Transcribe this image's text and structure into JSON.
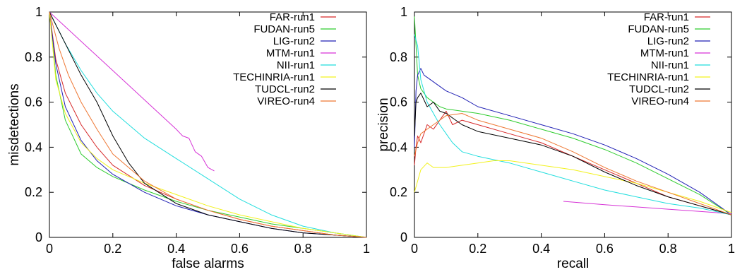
{
  "chart_data": [
    {
      "type": "line",
      "xlabel": "false alarms",
      "ylabel": "misdetections",
      "xlim": [
        0,
        1
      ],
      "ylim": [
        0,
        1
      ],
      "xticks": [
        "0",
        "0.2",
        "0.4",
        "0.6",
        "0.8",
        "1"
      ],
      "yticks": [
        "0",
        "0.2",
        "0.4",
        "0.6",
        "0.8",
        "1"
      ],
      "grid": false,
      "legend_position": "top-right",
      "series": [
        {
          "name": "FAR-run1",
          "color": "#d62728",
          "points": [
            [
              0,
              1
            ],
            [
              0.02,
              0.79
            ],
            [
              0.05,
              0.64
            ],
            [
              0.1,
              0.5
            ],
            [
              0.15,
              0.4
            ],
            [
              0.2,
              0.32
            ],
            [
              0.3,
              0.23
            ],
            [
              0.4,
              0.17
            ],
            [
              0.5,
              0.12
            ],
            [
              0.6,
              0.08
            ],
            [
              0.7,
              0.05
            ],
            [
              0.8,
              0.03
            ],
            [
              0.9,
              0.01
            ],
            [
              1,
              0
            ]
          ]
        },
        {
          "name": "FUDAN-run5",
          "color": "#2ecc2e",
          "points": [
            [
              0,
              1
            ],
            [
              0.02,
              0.72
            ],
            [
              0.05,
              0.52
            ],
            [
              0.1,
              0.37
            ],
            [
              0.15,
              0.31
            ],
            [
              0.2,
              0.27
            ],
            [
              0.3,
              0.21
            ],
            [
              0.4,
              0.16
            ],
            [
              0.5,
              0.12
            ],
            [
              0.6,
              0.09
            ],
            [
              0.7,
              0.06
            ],
            [
              0.8,
              0.04
            ],
            [
              0.9,
              0.02
            ],
            [
              1,
              0
            ]
          ]
        },
        {
          "name": "LIG-run2",
          "color": "#1f1fb4",
          "points": [
            [
              0,
              1
            ],
            [
              0.02,
              0.77
            ],
            [
              0.05,
              0.58
            ],
            [
              0.1,
              0.43
            ],
            [
              0.15,
              0.34
            ],
            [
              0.2,
              0.28
            ],
            [
              0.3,
              0.2
            ],
            [
              0.4,
              0.14
            ],
            [
              0.5,
              0.1
            ],
            [
              0.6,
              0.07
            ],
            [
              0.7,
              0.04
            ],
            [
              0.8,
              0.02
            ],
            [
              0.9,
              0.01
            ],
            [
              1,
              0
            ]
          ]
        },
        {
          "name": "MTM-run1",
          "color": "#d633d6",
          "points": [
            [
              0,
              1
            ],
            [
              0.1,
              0.87
            ],
            [
              0.2,
              0.74
            ],
            [
              0.3,
              0.61
            ],
            [
              0.35,
              0.545
            ],
            [
              0.4,
              0.48
            ],
            [
              0.42,
              0.45
            ],
            [
              0.44,
              0.44
            ],
            [
              0.46,
              0.38
            ],
            [
              0.48,
              0.36
            ],
            [
              0.5,
              0.31
            ],
            [
              0.52,
              0.295
            ]
          ]
        },
        {
          "name": "NII-run1",
          "color": "#22dede",
          "points": [
            [
              0,
              1
            ],
            [
              0.05,
              0.86
            ],
            [
              0.1,
              0.74
            ],
            [
              0.15,
              0.64
            ],
            [
              0.2,
              0.56
            ],
            [
              0.25,
              0.5
            ],
            [
              0.3,
              0.44
            ],
            [
              0.4,
              0.35
            ],
            [
              0.5,
              0.26
            ],
            [
              0.6,
              0.17
            ],
            [
              0.7,
              0.1
            ],
            [
              0.8,
              0.05
            ],
            [
              0.9,
              0.02
            ],
            [
              1,
              0
            ]
          ]
        },
        {
          "name": "TECHINRIA-run1",
          "color": "#f2f21e",
          "points": [
            [
              0,
              1
            ],
            [
              0.02,
              0.7
            ],
            [
              0.05,
              0.55
            ],
            [
              0.1,
              0.42
            ],
            [
              0.15,
              0.35
            ],
            [
              0.2,
              0.3
            ],
            [
              0.3,
              0.24
            ],
            [
              0.4,
              0.19
            ],
            [
              0.5,
              0.14
            ],
            [
              0.6,
              0.1
            ],
            [
              0.7,
              0.07
            ],
            [
              0.8,
              0.04
            ],
            [
              0.9,
              0.02
            ],
            [
              1,
              0
            ]
          ]
        },
        {
          "name": "TUDCL-run2",
          "color": "#000000",
          "points": [
            [
              0,
              1
            ],
            [
              0.05,
              0.86
            ],
            [
              0.1,
              0.72
            ],
            [
              0.15,
              0.6
            ],
            [
              0.2,
              0.45
            ],
            [
              0.25,
              0.33
            ],
            [
              0.3,
              0.24
            ],
            [
              0.4,
              0.15
            ],
            [
              0.5,
              0.1
            ],
            [
              0.6,
              0.07
            ],
            [
              0.7,
              0.04
            ],
            [
              0.8,
              0.02
            ],
            [
              0.9,
              0.01
            ],
            [
              1,
              0
            ]
          ]
        },
        {
          "name": "VIREO-run4",
          "color": "#ee7733",
          "points": [
            [
              0,
              1
            ],
            [
              0.03,
              0.84
            ],
            [
              0.06,
              0.72
            ],
            [
              0.1,
              0.6
            ],
            [
              0.15,
              0.48
            ],
            [
              0.2,
              0.37
            ],
            [
              0.3,
              0.25
            ],
            [
              0.4,
              0.17
            ],
            [
              0.5,
              0.12
            ],
            [
              0.6,
              0.08
            ],
            [
              0.7,
              0.05
            ],
            [
              0.8,
              0.03
            ],
            [
              0.9,
              0.01
            ],
            [
              1,
              0
            ]
          ]
        }
      ]
    },
    {
      "type": "line",
      "xlabel": "recall",
      "ylabel": "precision",
      "xlim": [
        0,
        1
      ],
      "ylim": [
        0,
        1
      ],
      "xticks": [
        "0",
        "0.2",
        "0.4",
        "0.6",
        "0.8",
        "1"
      ],
      "yticks": [
        "0",
        "0.2",
        "0.4",
        "0.6",
        "0.8",
        "1"
      ],
      "grid": false,
      "legend_position": "top-right",
      "series": [
        {
          "name": "FAR-run1",
          "color": "#d62728",
          "points": [
            [
              0,
              0.32
            ],
            [
              0.005,
              0.4
            ],
            [
              0.01,
              0.45
            ],
            [
              0.02,
              0.42
            ],
            [
              0.04,
              0.5
            ],
            [
              0.06,
              0.48
            ],
            [
              0.08,
              0.52
            ],
            [
              0.1,
              0.56
            ],
            [
              0.12,
              0.5
            ],
            [
              0.15,
              0.52
            ],
            [
              0.2,
              0.5
            ],
            [
              0.3,
              0.46
            ],
            [
              0.4,
              0.42
            ],
            [
              0.5,
              0.36
            ],
            [
              0.6,
              0.3
            ],
            [
              0.7,
              0.24
            ],
            [
              0.8,
              0.18
            ],
            [
              0.9,
              0.14
            ],
            [
              1,
              0.1
            ]
          ]
        },
        {
          "name": "FUDAN-run5",
          "color": "#2ecc2e",
          "points": [
            [
              0,
              0.98
            ],
            [
              0.01,
              0.72
            ],
            [
              0.02,
              0.66
            ],
            [
              0.04,
              0.62
            ],
            [
              0.06,
              0.6
            ],
            [
              0.08,
              0.58
            ],
            [
              0.1,
              0.57
            ],
            [
              0.15,
              0.56
            ],
            [
              0.2,
              0.55
            ],
            [
              0.3,
              0.52
            ],
            [
              0.4,
              0.48
            ],
            [
              0.5,
              0.44
            ],
            [
              0.6,
              0.39
            ],
            [
              0.7,
              0.33
            ],
            [
              0.8,
              0.26
            ],
            [
              0.9,
              0.19
            ],
            [
              1,
              0.1
            ]
          ]
        },
        {
          "name": "LIG-run2",
          "color": "#1f1fb4",
          "points": [
            [
              0,
              0.4
            ],
            [
              0.005,
              0.65
            ],
            [
              0.01,
              0.72
            ],
            [
              0.02,
              0.75
            ],
            [
              0.03,
              0.72
            ],
            [
              0.05,
              0.7
            ],
            [
              0.08,
              0.67
            ],
            [
              0.1,
              0.65
            ],
            [
              0.15,
              0.62
            ],
            [
              0.2,
              0.58
            ],
            [
              0.3,
              0.54
            ],
            [
              0.4,
              0.5
            ],
            [
              0.5,
              0.46
            ],
            [
              0.6,
              0.41
            ],
            [
              0.7,
              0.35
            ],
            [
              0.8,
              0.28
            ],
            [
              0.9,
              0.2
            ],
            [
              1,
              0.1
            ]
          ]
        },
        {
          "name": "MTM-run1",
          "color": "#d633d6",
          "points": [
            [
              0.47,
              0.16
            ],
            [
              0.6,
              0.145
            ],
            [
              0.7,
              0.135
            ],
            [
              0.8,
              0.125
            ],
            [
              0.9,
              0.115
            ],
            [
              1,
              0.105
            ]
          ]
        },
        {
          "name": "NII-run1",
          "color": "#22dede",
          "points": [
            [
              0,
              0.9
            ],
            [
              0.01,
              0.85
            ],
            [
              0.02,
              0.7
            ],
            [
              0.04,
              0.6
            ],
            [
              0.06,
              0.55
            ],
            [
              0.08,
              0.5
            ],
            [
              0.1,
              0.46
            ],
            [
              0.12,
              0.42
            ],
            [
              0.15,
              0.38
            ],
            [
              0.2,
              0.36
            ],
            [
              0.3,
              0.33
            ],
            [
              0.4,
              0.29
            ],
            [
              0.5,
              0.25
            ],
            [
              0.6,
              0.21
            ],
            [
              0.7,
              0.18
            ],
            [
              0.8,
              0.15
            ],
            [
              0.9,
              0.13
            ],
            [
              1,
              0.1
            ]
          ]
        },
        {
          "name": "TECHINRIA-run1",
          "color": "#f2f21e",
          "points": [
            [
              0,
              0.2
            ],
            [
              0.01,
              0.25
            ],
            [
              0.02,
              0.3
            ],
            [
              0.04,
              0.33
            ],
            [
              0.06,
              0.31
            ],
            [
              0.1,
              0.31
            ],
            [
              0.15,
              0.32
            ],
            [
              0.2,
              0.33
            ],
            [
              0.25,
              0.34
            ],
            [
              0.3,
              0.34
            ],
            [
              0.4,
              0.32
            ],
            [
              0.5,
              0.3
            ],
            [
              0.6,
              0.27
            ],
            [
              0.7,
              0.24
            ],
            [
              0.8,
              0.2
            ],
            [
              0.9,
              0.16
            ],
            [
              1,
              0.11
            ]
          ]
        },
        {
          "name": "TUDCL-run2",
          "color": "#000000",
          "points": [
            [
              0,
              0.45
            ],
            [
              0.005,
              0.6
            ],
            [
              0.01,
              0.62
            ],
            [
              0.02,
              0.64
            ],
            [
              0.04,
              0.58
            ],
            [
              0.06,
              0.6
            ],
            [
              0.08,
              0.56
            ],
            [
              0.1,
              0.55
            ],
            [
              0.15,
              0.5
            ],
            [
              0.2,
              0.47
            ],
            [
              0.3,
              0.44
            ],
            [
              0.4,
              0.41
            ],
            [
              0.5,
              0.36
            ],
            [
              0.6,
              0.29
            ],
            [
              0.7,
              0.23
            ],
            [
              0.8,
              0.18
            ],
            [
              0.9,
              0.14
            ],
            [
              1,
              0.1
            ]
          ]
        },
        {
          "name": "VIREO-run4",
          "color": "#ee7733",
          "points": [
            [
              0,
              0.36
            ],
            [
              0.01,
              0.42
            ],
            [
              0.02,
              0.46
            ],
            [
              0.04,
              0.48
            ],
            [
              0.06,
              0.5
            ],
            [
              0.08,
              0.52
            ],
            [
              0.1,
              0.54
            ],
            [
              0.15,
              0.55
            ],
            [
              0.2,
              0.52
            ],
            [
              0.3,
              0.48
            ],
            [
              0.4,
              0.44
            ],
            [
              0.5,
              0.38
            ],
            [
              0.6,
              0.31
            ],
            [
              0.7,
              0.25
            ],
            [
              0.8,
              0.2
            ],
            [
              0.9,
              0.15
            ],
            [
              1,
              0.1
            ]
          ]
        }
      ]
    }
  ]
}
